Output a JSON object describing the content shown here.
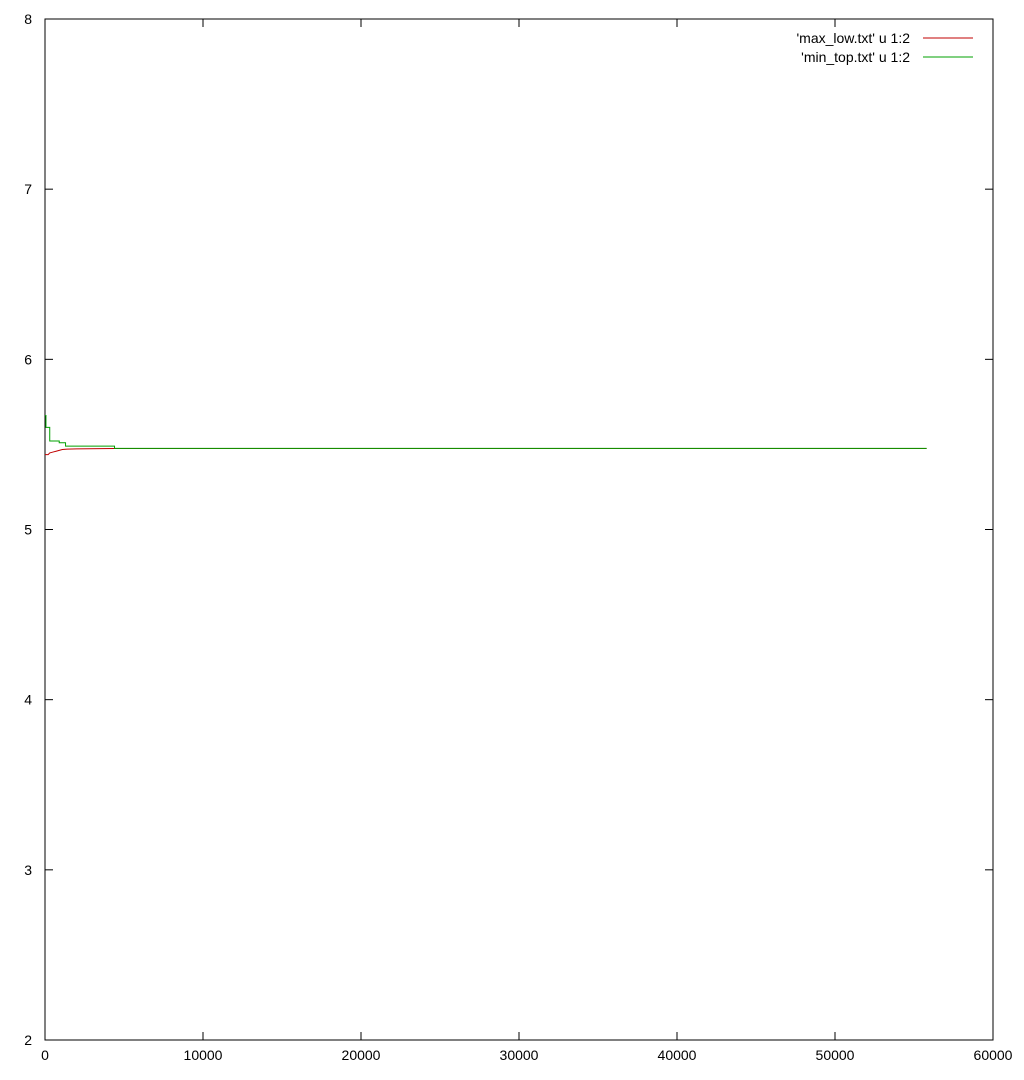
{
  "chart_data": {
    "type": "line",
    "title": "",
    "xlabel": "",
    "ylabel": "",
    "xlim": [
      0,
      60000
    ],
    "ylim": [
      2,
      8
    ],
    "xticks": [
      "0",
      "10000",
      "20000",
      "30000",
      "40000",
      "50000",
      "60000"
    ],
    "yticks": [
      "2",
      "3",
      "4",
      "5",
      "6",
      "7",
      "8"
    ],
    "grid": false,
    "legend": "top-right",
    "series": [
      {
        "name": "'max_low.txt' u 1:2",
        "color": "#c00000",
        "points": [
          [
            0,
            5.44
          ],
          [
            200,
            5.44
          ],
          [
            300,
            5.45
          ],
          [
            500,
            5.455
          ],
          [
            700,
            5.46
          ],
          [
            900,
            5.465
          ],
          [
            1100,
            5.47
          ],
          [
            1400,
            5.472
          ],
          [
            2000,
            5.474
          ],
          [
            4400,
            5.476
          ],
          [
            55800,
            5.476
          ]
        ]
      },
      {
        "name": "'min_top.txt' u 1:2",
        "color": "#00a000",
        "points": [
          [
            0,
            5.67
          ],
          [
            60,
            5.67
          ],
          [
            60,
            5.6
          ],
          [
            300,
            5.6
          ],
          [
            300,
            5.52
          ],
          [
            900,
            5.52
          ],
          [
            900,
            5.51
          ],
          [
            1300,
            5.51
          ],
          [
            1300,
            5.49
          ],
          [
            4400,
            5.49
          ],
          [
            4400,
            5.477
          ],
          [
            55800,
            5.477
          ]
        ]
      }
    ]
  }
}
